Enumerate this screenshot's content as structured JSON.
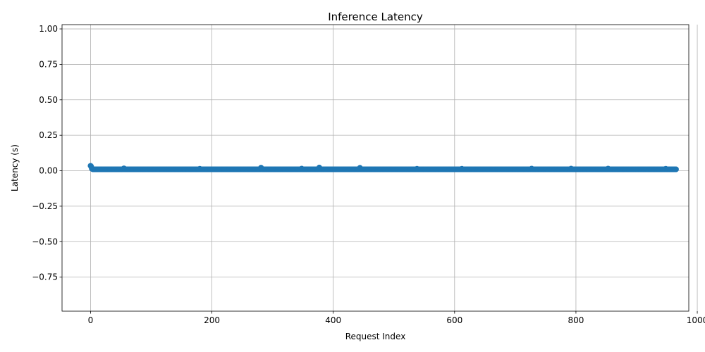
{
  "chart_data": {
    "type": "line",
    "title": "Inference Latency",
    "xlabel": "Request Index",
    "ylabel": "Latency (s)",
    "xlim": [
      -47,
      986
    ],
    "ylim": [
      -0.99,
      1.03
    ],
    "xticks": [
      0,
      200,
      400,
      600,
      800,
      1000
    ],
    "xtick_labels": [
      "0",
      "200",
      "400",
      "600",
      "800",
      "1000"
    ],
    "yticks": [
      -0.75,
      -0.5,
      -0.25,
      0.0,
      0.25,
      0.5,
      0.75,
      1.0
    ],
    "ytick_labels": [
      "−0.75",
      "−0.50",
      "−0.25",
      "0.00",
      "0.25",
      "0.50",
      "0.75",
      "1.00"
    ],
    "grid": true,
    "marker": "circle",
    "color": "#1f77b4",
    "series": [
      {
        "count": 966,
        "baseline": 0.01,
        "values_head": [
          0.035,
          0.03,
          0.015,
          0.012
        ],
        "spikes": [
          [
            55,
            0.017
          ],
          [
            180,
            0.014
          ],
          [
            281,
            0.022
          ],
          [
            348,
            0.015
          ],
          [
            377,
            0.023
          ],
          [
            444,
            0.021
          ],
          [
            538,
            0.014
          ],
          [
            612,
            0.014
          ],
          [
            727,
            0.015
          ],
          [
            792,
            0.015
          ],
          [
            853,
            0.015
          ],
          [
            948,
            0.014
          ]
        ]
      }
    ]
  }
}
